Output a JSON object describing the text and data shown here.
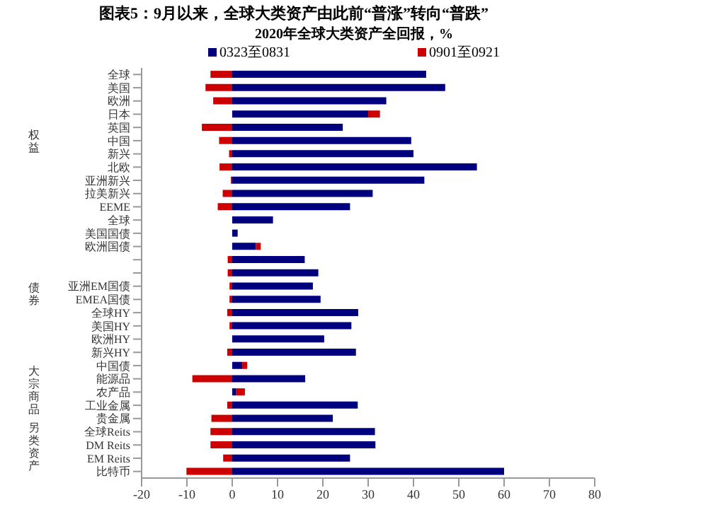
{
  "chart_data": {
    "type": "bar",
    "orientation": "horizontal",
    "stacked": true,
    "title": "图表5：9月以来，全球大类资产由此前“普涨”转向“普跌”",
    "subtitle": "2020年全球大类资产全回报，%",
    "categories": [
      "全球",
      "美国",
      "欧洲",
      "日本",
      "英国",
      "中国",
      "新兴",
      "北欧",
      "亚洲新兴",
      "拉美新兴",
      "EEME",
      "全球",
      "美国国债",
      "欧洲国债",
      null,
      null,
      "亚洲EM国债",
      "EMEA国债",
      "全球HY",
      "美国HY",
      "欧洲HY",
      "新兴HY",
      "中国债",
      "能源品",
      "农产品",
      "工业金属",
      "贵金属",
      "全球Reits",
      "DM Reits",
      "EM Reits",
      "比特币"
    ],
    "series": [
      {
        "name": "0323至0831",
        "color": "#00007f",
        "values": [
          42.8,
          47,
          34,
          30,
          24.4,
          39.5,
          40,
          54,
          42.4,
          31,
          26,
          9,
          1.2,
          5.2,
          16,
          19,
          17.8,
          19.5,
          27.8,
          26.3,
          20.3,
          27.3,
          2.2,
          16.1,
          0.9,
          27.7,
          22.2,
          31.5,
          31.6,
          26,
          60
        ]
      },
      {
        "name": "0901至0921",
        "color": "#cc0000",
        "values": [
          -4.8,
          -5.9,
          -4.2,
          2.6,
          -6.7,
          -2.9,
          -0.7,
          -2.8,
          -0.3,
          -2.1,
          -3.2,
          0,
          0,
          1.1,
          -1,
          -1,
          -0.6,
          -0.6,
          -1.1,
          -0.6,
          0,
          -1.1,
          1.1,
          -8.8,
          1.9,
          -1.1,
          -4.6,
          -4.8,
          -4.8,
          -2,
          -10.1
        ]
      }
    ],
    "xlim": [
      -20,
      80
    ],
    "xticks": [
      -20,
      -10,
      0,
      10,
      20,
      30,
      40,
      50,
      60,
      70,
      80
    ],
    "legend": "top",
    "grid": false,
    "annotations": [
      "权益",
      "债券",
      "大宗商品",
      "另类资产"
    ]
  }
}
